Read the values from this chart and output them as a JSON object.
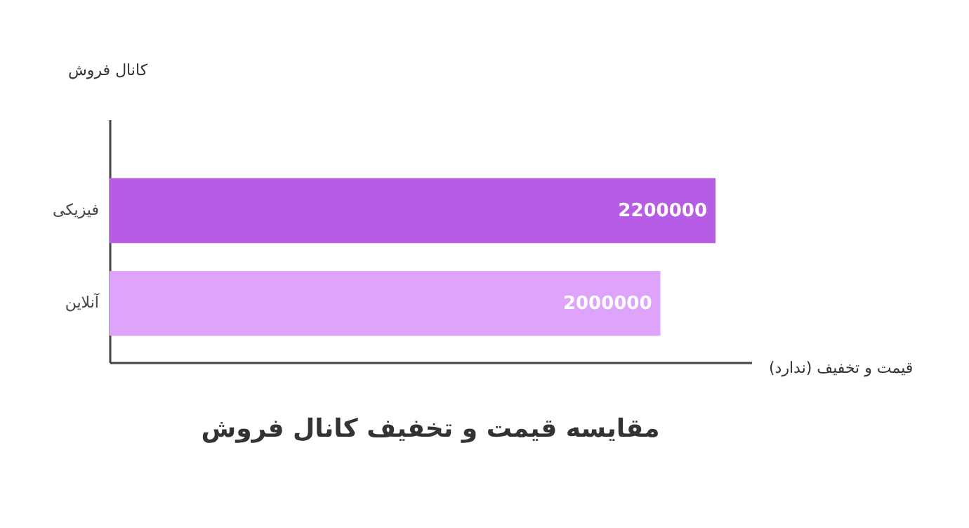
{
  "chart_data": {
    "type": "bar",
    "orientation": "horizontal",
    "title": "مقایسه قیمت و تخفیف کانال فروش",
    "xlabel": "قیمت و تخفیف (ندارد)",
    "ylabel": "کانال فروش",
    "categories": [
      "فیزیکی",
      "آنلاین"
    ],
    "values": [
      2200000,
      2000000
    ],
    "colors": [
      "#b65ce5",
      "#dea4fc"
    ],
    "xlim": [
      0,
      2330000
    ],
    "data_labels": true,
    "tick_labels": "y",
    "grid": false
  }
}
